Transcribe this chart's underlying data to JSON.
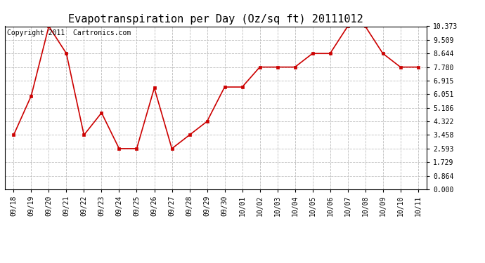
{
  "title": "Evapotranspiration per Day (Oz/sq ft) 20111012",
  "copyright_text": "Copyright 2011  Cartronics.com",
  "x_labels": [
    "09/18",
    "09/19",
    "09/20",
    "09/21",
    "09/22",
    "09/23",
    "09/24",
    "09/25",
    "09/26",
    "09/27",
    "09/28",
    "09/29",
    "09/30",
    "10/01",
    "10/02",
    "10/03",
    "10/04",
    "10/05",
    "10/06",
    "10/07",
    "10/08",
    "10/09",
    "10/10",
    "10/11"
  ],
  "y_values": [
    3.458,
    5.951,
    10.373,
    8.644,
    3.458,
    4.87,
    2.593,
    2.593,
    6.451,
    2.593,
    3.458,
    4.322,
    6.51,
    6.51,
    7.78,
    7.78,
    7.78,
    8.644,
    8.644,
    10.373,
    10.373,
    8.644,
    7.78,
    7.78
  ],
  "y_ticks": [
    0.0,
    0.864,
    1.729,
    2.593,
    3.458,
    4.322,
    5.186,
    6.051,
    6.915,
    7.78,
    8.644,
    9.509,
    10.373
  ],
  "line_color": "#cc0000",
  "marker_color": "#cc0000",
  "bg_color": "#ffffff",
  "grid_color": "#bbbbbb",
  "title_fontsize": 11,
  "copyright_fontsize": 7,
  "tick_fontsize": 7,
  "y_min": 0.0,
  "y_max": 10.373
}
